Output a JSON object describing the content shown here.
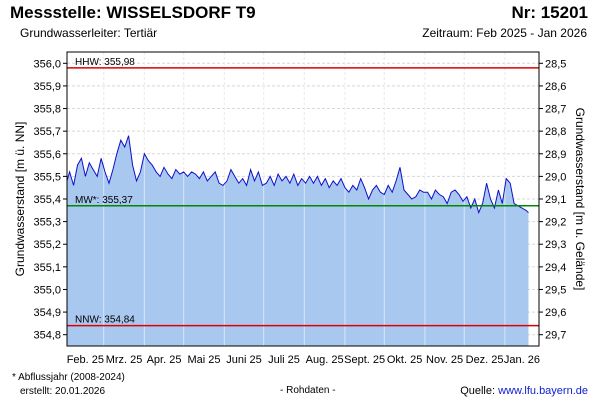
{
  "header": {
    "title": "Messstelle: WISSELSDORF T9",
    "nr": "Nr: 15201",
    "subtitle": "Grundwasserleiter: Tertiär",
    "period": "Zeitraum: Feb 2025 - Jan 2026"
  },
  "footer": {
    "footnote": "* Abflussjahr (2008-2024)",
    "created": "erstellt:  20.01.2026",
    "rawdata": "- Rohdaten -",
    "source_label": "Quelle:",
    "source_link": "www.lfu.bayern.de"
  },
  "colors": {
    "fill": "#a8c8f0",
    "line": "#1010c8",
    "hhw": "#dd0000",
    "nnw": "#dd0000",
    "mw": "#008800",
    "grid": "#d8d8d8"
  },
  "chart_data": {
    "type": "area",
    "title": "",
    "ylabel_left": "Grundwasserstand [m ü. NN]",
    "ylabel_right": "Grundwasserstand [m u. Gelände]",
    "ylim": [
      354.75,
      356.05
    ],
    "yticks_left": [
      "356,0",
      "355,9",
      "355,8",
      "355,7",
      "355,6",
      "355,5",
      "355,4",
      "355,3",
      "355,2",
      "355,1",
      "355,0",
      "354,9",
      "354,8"
    ],
    "yticks_right": [
      "28,5",
      "28,6",
      "28,7",
      "28,8",
      "28,9",
      "29,0",
      "29,1",
      "29,2",
      "29,3",
      "29,4",
      "29,5",
      "29,6",
      "29,7"
    ],
    "xticks": [
      "Feb. 25",
      "Mrz. 25",
      "Apr. 25",
      "Mai 25",
      "Juni 25",
      "Juli 25",
      "Aug. 25",
      "Sept. 25",
      "Okt. 25",
      "Nov. 25",
      "Dez. 25",
      "Jan. 26"
    ],
    "reference_lines": [
      {
        "label": "HHW: 355,98",
        "value": 355.98
      },
      {
        "label": "MW*: 355,37",
        "value": 355.37
      },
      {
        "label": "NNW: 354,84",
        "value": 354.84
      }
    ],
    "series": [
      {
        "x": [
          "2025-02-01",
          "2025-02-03",
          "2025-02-06",
          "2025-02-09",
          "2025-02-12",
          "2025-02-15",
          "2025-02-18",
          "2025-02-21",
          "2025-02-24",
          "2025-02-27",
          "2025-03-02",
          "2025-03-05",
          "2025-03-08",
          "2025-03-11",
          "2025-03-14",
          "2025-03-17",
          "2025-03-20",
          "2025-03-23",
          "2025-03-26",
          "2025-03-29",
          "2025-04-01",
          "2025-04-04",
          "2025-04-07",
          "2025-04-10",
          "2025-04-13",
          "2025-04-16",
          "2025-04-19",
          "2025-04-22",
          "2025-04-25",
          "2025-04-28",
          "2025-05-01",
          "2025-05-04",
          "2025-05-07",
          "2025-05-10",
          "2025-05-13",
          "2025-05-16",
          "2025-05-19",
          "2025-05-22",
          "2025-05-25",
          "2025-05-28",
          "2025-05-31",
          "2025-06-03",
          "2025-06-06",
          "2025-06-09",
          "2025-06-12",
          "2025-06-15",
          "2025-06-18",
          "2025-06-21",
          "2025-06-24",
          "2025-06-27",
          "2025-06-30",
          "2025-07-03",
          "2025-07-06",
          "2025-07-09",
          "2025-07-12",
          "2025-07-15",
          "2025-07-18",
          "2025-07-21",
          "2025-07-24",
          "2025-07-27",
          "2025-07-30",
          "2025-08-02",
          "2025-08-05",
          "2025-08-08",
          "2025-08-11",
          "2025-08-14",
          "2025-08-17",
          "2025-08-20",
          "2025-08-23",
          "2025-08-26",
          "2025-08-29",
          "2025-09-01",
          "2025-09-04",
          "2025-09-07",
          "2025-09-10",
          "2025-09-13",
          "2025-09-16",
          "2025-09-19",
          "2025-09-22",
          "2025-09-25",
          "2025-09-28",
          "2025-10-01",
          "2025-10-04",
          "2025-10-07",
          "2025-10-10",
          "2025-10-13",
          "2025-10-16",
          "2025-10-19",
          "2025-10-22",
          "2025-10-25",
          "2025-10-28",
          "2025-10-31",
          "2025-11-03",
          "2025-11-06",
          "2025-11-09",
          "2025-11-12",
          "2025-11-15",
          "2025-11-18",
          "2025-11-21",
          "2025-11-24",
          "2025-11-27",
          "2025-11-30",
          "2025-12-03",
          "2025-12-06",
          "2025-12-09",
          "2025-12-12",
          "2025-12-15",
          "2025-12-18",
          "2025-12-21",
          "2025-12-24",
          "2025-12-27",
          "2025-12-30",
          "2026-01-02",
          "2026-01-05",
          "2026-01-08",
          "2026-01-11",
          "2026-01-14",
          "2026-01-17",
          "2026-01-19"
        ],
        "y": [
          355.48,
          355.52,
          355.46,
          355.55,
          355.58,
          355.5,
          355.56,
          355.53,
          355.5,
          355.58,
          355.52,
          355.47,
          355.53,
          355.6,
          355.66,
          355.63,
          355.68,
          355.55,
          355.48,
          355.52,
          355.6,
          355.57,
          355.55,
          355.52,
          355.5,
          355.54,
          355.51,
          355.49,
          355.53,
          355.51,
          355.52,
          355.5,
          355.52,
          355.51,
          355.49,
          355.52,
          355.48,
          355.5,
          355.52,
          355.47,
          355.46,
          355.48,
          355.53,
          355.5,
          355.47,
          355.49,
          355.46,
          355.53,
          355.48,
          355.52,
          355.46,
          355.47,
          355.5,
          355.46,
          355.51,
          355.48,
          355.5,
          355.47,
          355.51,
          355.46,
          355.49,
          355.47,
          355.5,
          355.47,
          355.5,
          355.46,
          355.49,
          355.45,
          355.48,
          355.46,
          355.49,
          355.45,
          355.43,
          355.46,
          355.44,
          355.49,
          355.45,
          355.4,
          355.44,
          355.46,
          355.43,
          355.42,
          355.46,
          355.43,
          355.48,
          355.54,
          355.44,
          355.42,
          355.4,
          355.41,
          355.44,
          355.43,
          355.43,
          355.4,
          355.44,
          355.42,
          355.41,
          355.38,
          355.43,
          355.44,
          355.42,
          355.39,
          355.41,
          355.36,
          355.4,
          355.34,
          355.38,
          355.47,
          355.4,
          355.36,
          355.44,
          355.38,
          355.49,
          355.47,
          355.38,
          355.37,
          355.36,
          355.35,
          355.34
        ]
      }
    ]
  }
}
